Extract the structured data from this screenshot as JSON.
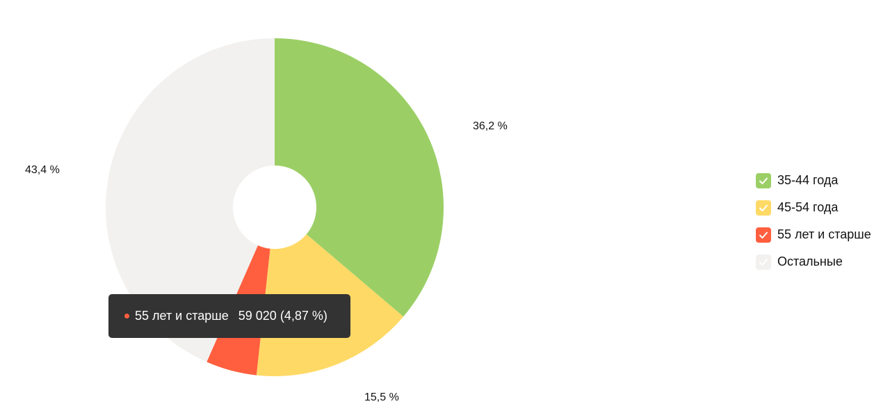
{
  "chart_data": {
    "type": "pie",
    "donut": true,
    "slices": [
      {
        "name": "35-44 года",
        "percent": 36.2,
        "label": "36,2 %",
        "color": "#9bcf66"
      },
      {
        "name": "45-54 года",
        "percent": 15.5,
        "label": "15,5 %",
        "color": "#ffd966"
      },
      {
        "name": "55 лет и старше",
        "percent": 4.87,
        "label": "",
        "color": "#ff5f3f"
      },
      {
        "name": "Остальные",
        "percent": 43.4,
        "label": "43,4 %",
        "color": "#f2f1ef"
      }
    ],
    "legend_position": "right"
  },
  "legend": {
    "items": [
      {
        "label": "35-44 года",
        "color": "#9bcf66",
        "checked": true
      },
      {
        "label": "45-54 года",
        "color": "#ffd966",
        "checked": true
      },
      {
        "label": "55 лет и старше",
        "color": "#ff5f3f",
        "checked": true
      },
      {
        "label": "Остальные",
        "color": "#f2f1ef",
        "checked": true
      }
    ]
  },
  "tooltip": {
    "series": "55 лет и старше",
    "value": "59 020 (4,87 %)",
    "dot_color": "#ff5f3f"
  }
}
